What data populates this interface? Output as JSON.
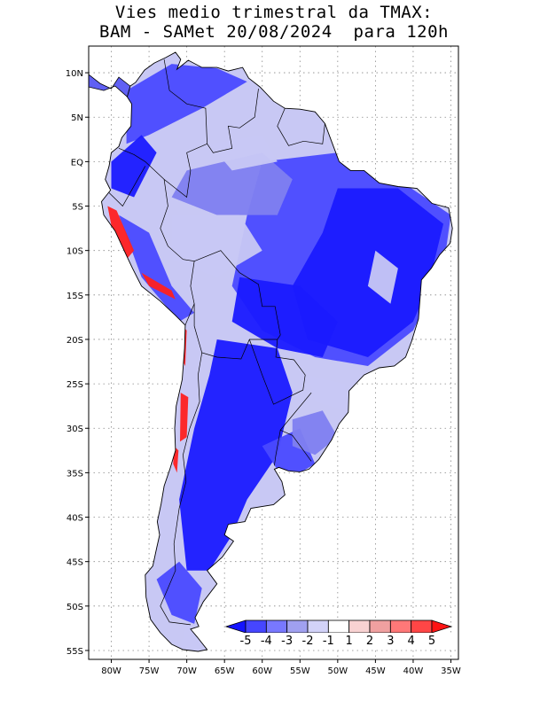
{
  "title": {
    "line1": "Vies medio trimestral da TMAX:",
    "line2": "BAM - SAMet 20/08/2024  para 120h"
  },
  "map": {
    "region": "South America",
    "lon_range": [
      -83,
      -34
    ],
    "lat_range": [
      -56,
      13
    ],
    "grid": "dotted",
    "lat_labels": [
      "10N",
      "5N",
      "EQ",
      "5S",
      "10S",
      "15S",
      "20S",
      "25S",
      "30S",
      "35S",
      "40S",
      "45S",
      "50S",
      "55S"
    ],
    "lon_labels": [
      "80W",
      "75W",
      "70W",
      "65W",
      "60W",
      "55W",
      "50W",
      "45W",
      "40W",
      "35W"
    ]
  },
  "colorbar": {
    "labels": [
      "-5",
      "-4",
      "-3",
      "-2",
      "-1",
      "1",
      "2",
      "3",
      "4",
      "5"
    ],
    "colors": [
      "#1414ff",
      "#4646ff",
      "#7878ff",
      "#a0a0f0",
      "#d2d2f8",
      "#ffffff",
      "#f8d2d2",
      "#f0a0a0",
      "#ff7878",
      "#ff4646",
      "#ff1414"
    ]
  },
  "colors": {
    "land_base": "#c8c8f4",
    "strong_cold": "#1a1aff",
    "cold": "#4a4aff",
    "mild_cold": "#8080f0",
    "warm": "#ff2020",
    "neutral": "#ffffff",
    "border": "#000000"
  }
}
